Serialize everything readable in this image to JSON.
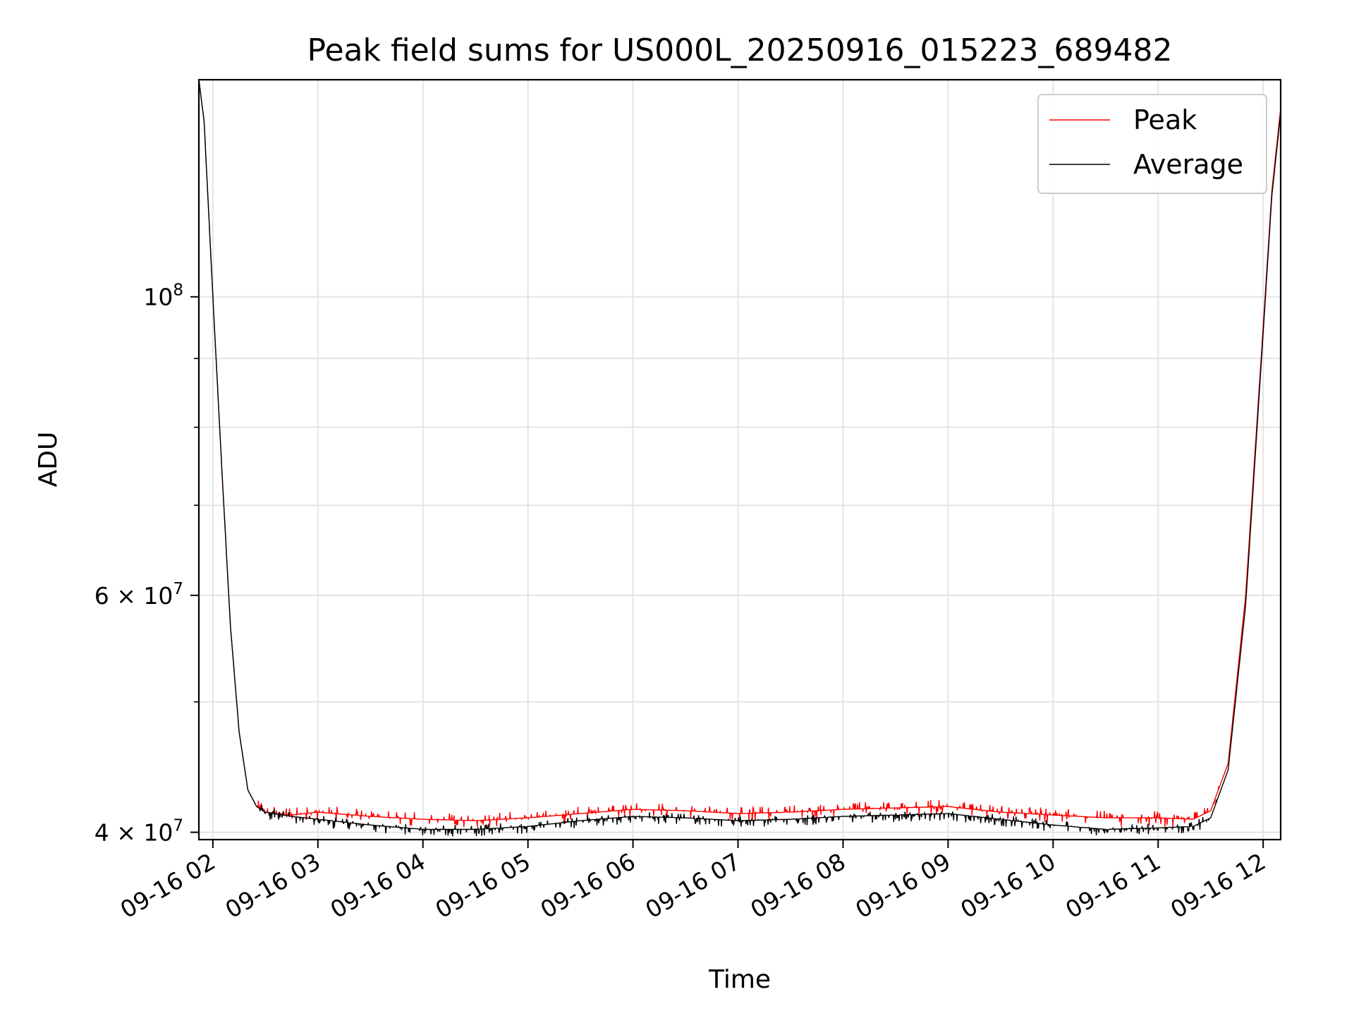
{
  "chart_data": {
    "type": "line",
    "title": "Peak field sums for US000L_20250916_015223_689482",
    "xlabel": "Time",
    "ylabel": "ADU",
    "y_scale": "log",
    "ylim": [
      39500000,
      145000000
    ],
    "xlim": [
      "09-16 01:52",
      "09-16 12:10"
    ],
    "grid": true,
    "legend_position": "upper right",
    "x_tick_labels": [
      "09-16 02",
      "09-16 03",
      "09-16 04",
      "09-16 05",
      "09-16 06",
      "09-16 07",
      "09-16 08",
      "09-16 09",
      "09-16 10",
      "09-16 11",
      "09-16 12"
    ],
    "y_ticks": [
      {
        "value": 40000000,
        "mantissa": "4",
        "exponent": "7"
      },
      {
        "value": 60000000,
        "mantissa": "6",
        "exponent": "7"
      },
      {
        "value": 100000000,
        "mantissa": "",
        "exponent": "8"
      }
    ],
    "y_minor_ticks": [
      50000000,
      70000000,
      80000000,
      90000000
    ],
    "x": [
      "09-16 01:52",
      "09-16 01:55",
      "09-16 02:00",
      "09-16 02:05",
      "09-16 02:10",
      "09-16 02:15",
      "09-16 02:20",
      "09-16 02:25",
      "09-16 02:30",
      "09-16 02:45",
      "09-16 03:00",
      "09-16 03:30",
      "09-16 04:00",
      "09-16 04:30",
      "09-16 05:00",
      "09-16 05:30",
      "09-16 06:00",
      "09-16 06:30",
      "09-16 07:00",
      "09-16 07:30",
      "09-16 08:00",
      "09-16 08:30",
      "09-16 09:00",
      "09-16 09:30",
      "09-16 10:00",
      "09-16 10:30",
      "09-16 11:00",
      "09-16 11:20",
      "09-16 11:30",
      "09-16 11:40",
      "09-16 11:50",
      "09-16 12:00",
      "09-16 12:05",
      "09-16 12:10"
    ],
    "series": [
      {
        "name": "Peak",
        "color": "#ff0000",
        "values": [
          145000000,
          135000000,
          100000000,
          75000000,
          57000000,
          47500000,
          43000000,
          41800000,
          41400000,
          41200000,
          41400000,
          41100000,
          40900000,
          40800000,
          41000000,
          41300000,
          41600000,
          41500000,
          41300000,
          41400000,
          41600000,
          41700000,
          41800000,
          41400000,
          41200000,
          41000000,
          41000000,
          40900000,
          41500000,
          45000000,
          60000000,
          95000000,
          120000000,
          138000000
        ]
      },
      {
        "name": "Average",
        "color": "#000000",
        "values": [
          145000000,
          135000000,
          100000000,
          75000000,
          57000000,
          47500000,
          43000000,
          41800000,
          41400000,
          41100000,
          40900000,
          40500000,
          40200000,
          40200000,
          40400000,
          40800000,
          41100000,
          41000000,
          40800000,
          40900000,
          41100000,
          41200000,
          41300000,
          40900000,
          40500000,
          40200000,
          40300000,
          40400000,
          41000000,
          44500000,
          59000000,
          94000000,
          119000000,
          137000000
        ]
      }
    ]
  }
}
